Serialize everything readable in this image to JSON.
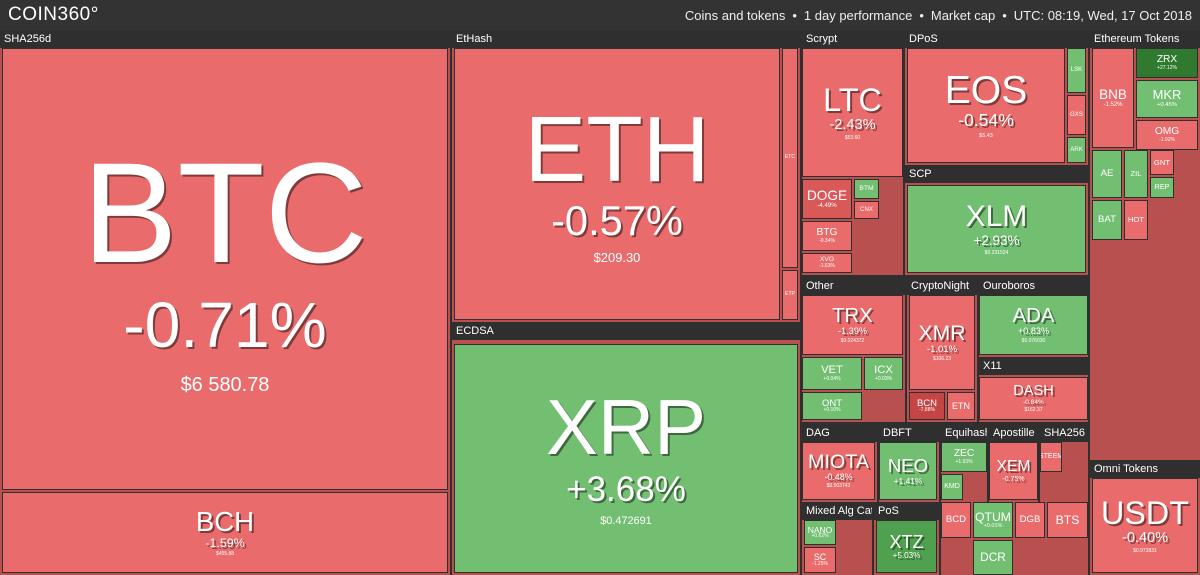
{
  "header": {
    "logo": "COIN360°",
    "info": [
      "Coins and tokens",
      "1 day performance",
      "Market cap",
      "UTC: 08:19, Wed, 17 Oct 2018"
    ]
  },
  "groups": [
    {
      "label": "SHA256d",
      "tiles": [
        {
          "symbol": "BTC",
          "change": "-0.71%",
          "price": "$6 580.78",
          "color": "#e96b6b"
        },
        {
          "symbol": "BCH",
          "change": "-1.59%",
          "price": "$455.88",
          "color": "#e96b6b"
        }
      ]
    },
    {
      "label": "EtHash",
      "tiles": [
        {
          "symbol": "ETH",
          "change": "-0.57%",
          "price": "$209.30",
          "color": "#e96b6b"
        },
        {
          "symbol": "ETC",
          "color": "#e96b6b"
        },
        {
          "symbol": "ETP",
          "color": "#e96b6b"
        }
      ]
    },
    {
      "label": "ECDSA",
      "tiles": [
        {
          "symbol": "XRP",
          "change": "+3.68%",
          "price": "$0.472691",
          "color": "#72bf72"
        }
      ]
    },
    {
      "label": "Scrypt",
      "tiles": [
        {
          "symbol": "LTC",
          "change": "-2.43%",
          "price": "$53.60",
          "color": "#e96b6b"
        },
        {
          "symbol": "DOGE",
          "change": "-4.49%",
          "color": "#d95858"
        },
        {
          "symbol": "BTM",
          "color": "#72bf72"
        },
        {
          "symbol": "CNX",
          "color": "#e96b6b"
        },
        {
          "symbol": "BTG",
          "change": "-0.34%",
          "color": "#e96b6b"
        },
        {
          "symbol": "XVG",
          "change": "-1.63%",
          "color": "#e96b6b"
        }
      ]
    },
    {
      "label": "DPoS",
      "tiles": [
        {
          "symbol": "EOS",
          "change": "-0.54%",
          "price": "$5.43",
          "color": "#e96b6b"
        },
        {
          "symbol": "LSK",
          "color": "#72bf72"
        },
        {
          "symbol": "GXS",
          "color": "#e96b6b"
        },
        {
          "symbol": "ARK",
          "color": "#72bf72"
        }
      ]
    },
    {
      "label": "SCP",
      "tiles": [
        {
          "symbol": "XLM",
          "change": "+2.93%",
          "price": "$0.231524",
          "color": "#72bf72"
        }
      ]
    },
    {
      "label": "Other",
      "tiles": [
        {
          "symbol": "TRX",
          "change": "-1.39%",
          "price": "$0.024372",
          "color": "#e96b6b"
        },
        {
          "symbol": "VET",
          "change": "+0.04%",
          "color": "#72bf72"
        },
        {
          "symbol": "ICX",
          "change": "+0.03%",
          "color": "#72bf72"
        },
        {
          "symbol": "ONT",
          "change": "+0.10%",
          "color": "#72bf72"
        }
      ]
    },
    {
      "label": "CryptoNight",
      "tiles": [
        {
          "symbol": "XMR",
          "change": "-1.01%",
          "price": "$106.23",
          "color": "#e96b6b"
        },
        {
          "symbol": "BCN",
          "change": "-7.88%",
          "color": "#c54444"
        },
        {
          "symbol": "ETN",
          "color": "#e96b6b"
        }
      ]
    },
    {
      "label": "Ouroboros",
      "tiles": [
        {
          "symbol": "ADA",
          "change": "+0.83%",
          "price": "$0.076030",
          "color": "#72bf72"
        }
      ]
    },
    {
      "label": "X11",
      "tiles": [
        {
          "symbol": "DASH",
          "change": "-0.84%",
          "price": "$162.37",
          "color": "#e96b6b"
        }
      ]
    },
    {
      "label": "DAG",
      "tiles": [
        {
          "symbol": "MIOTA",
          "change": "-0.48%",
          "price": "$0.503743",
          "color": "#e96b6b"
        }
      ]
    },
    {
      "label": "DBFT",
      "tiles": [
        {
          "symbol": "NEO",
          "change": "+1.41%",
          "color": "#72bf72"
        }
      ]
    },
    {
      "label": "Equihash",
      "tiles": [
        {
          "symbol": "ZEC",
          "change": "+1.93%",
          "color": "#72bf72"
        },
        {
          "symbol": "KMD",
          "color": "#72bf72"
        }
      ]
    },
    {
      "label": "Apostille",
      "tiles": [
        {
          "symbol": "XEM",
          "change": "-0.75%",
          "color": "#e96b6b"
        }
      ]
    },
    {
      "label": "SHA256",
      "tiles": [
        {
          "symbol": "STEEM",
          "color": "#e96b6b"
        }
      ]
    },
    {
      "label": "Mixed Alg Cate",
      "tiles": [
        {
          "symbol": "NANO",
          "change": "+0.62%",
          "color": "#72bf72"
        },
        {
          "symbol": "SC",
          "change": "-1.25%",
          "color": "#e96b6b"
        }
      ]
    },
    {
      "label": "PoS",
      "tiles": [
        {
          "symbol": "XTZ",
          "change": "+5.03%",
          "color": "#4fa04f"
        }
      ]
    },
    {
      "label": "Ethereum Tokens",
      "tiles": [
        {
          "symbol": "BNB",
          "change": "-1.52%",
          "color": "#e96b6b"
        },
        {
          "symbol": "ZRX",
          "change": "+27.12%",
          "color": "#2f7a2f"
        },
        {
          "symbol": "MKR",
          "change": "+0.45%",
          "color": "#72bf72"
        },
        {
          "symbol": "OMG",
          "change": "-1.92%",
          "color": "#e96b6b"
        },
        {
          "symbol": "AE",
          "color": "#72bf72"
        },
        {
          "symbol": "ZIL",
          "color": "#72bf72"
        },
        {
          "symbol": "GNT",
          "color": "#e96b6b"
        },
        {
          "symbol": "REP",
          "color": "#72bf72"
        },
        {
          "symbol": "BAT",
          "color": "#72bf72"
        },
        {
          "symbol": "HOT",
          "color": "#e96b6b"
        }
      ]
    },
    {
      "label": "Omni Tokens",
      "tiles": [
        {
          "symbol": "USDT",
          "change": "-0.40%",
          "price": "$0.973831",
          "color": "#e96b6b"
        }
      ]
    }
  ],
  "misc_tiles": [
    {
      "symbol": "BCD",
      "color": "#e96b6b"
    },
    {
      "symbol": "QTUM",
      "change": "+0.01%",
      "color": "#72bf72"
    },
    {
      "symbol": "DGB",
      "color": "#e96b6b"
    },
    {
      "symbol": "BTS",
      "color": "#e96b6b"
    },
    {
      "symbol": "DCR",
      "color": "#72bf72"
    }
  ]
}
